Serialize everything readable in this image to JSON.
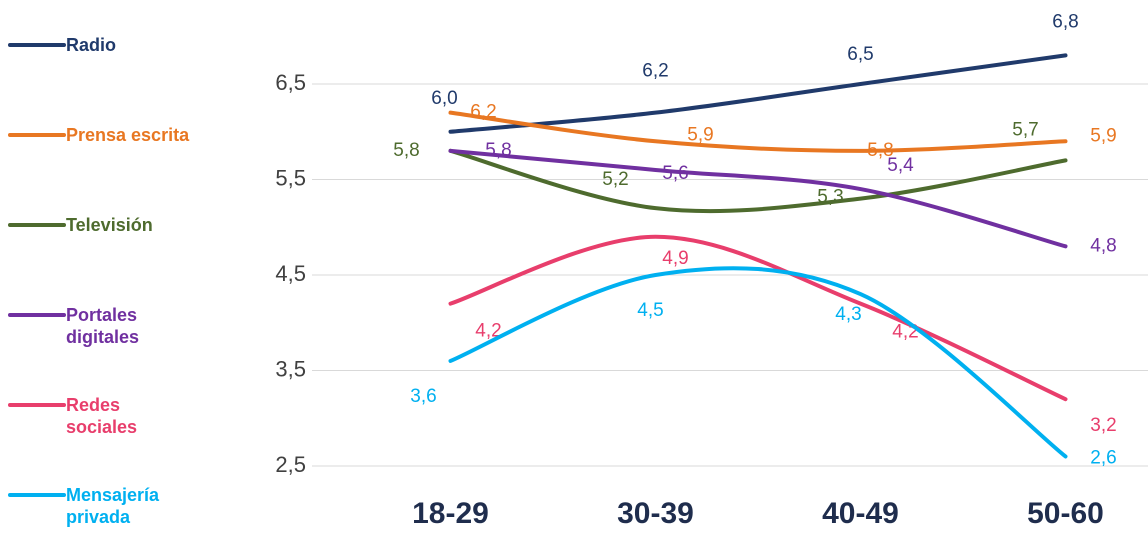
{
  "chart_data": {
    "type": "line",
    "categories": [
      "18-29",
      "30-39",
      "40-49",
      "50-60"
    ],
    "series": [
      {
        "name": "Radio",
        "color": "#203a6b",
        "values": [
          6.0,
          6.2,
          6.5,
          6.8
        ],
        "value_labels": [
          "6,0",
          "6,2",
          "6,5",
          "6,8"
        ]
      },
      {
        "name": "Prensa escrita",
        "color": "#e87722",
        "values": [
          6.2,
          5.9,
          5.8,
          5.9
        ],
        "value_labels": [
          "6,2",
          "5,9",
          "5,8",
          "5,9"
        ]
      },
      {
        "name": "Televisión",
        "color": "#4e6b2e",
        "values": [
          5.8,
          5.2,
          5.3,
          5.7
        ],
        "value_labels": [
          "5,8",
          "5,2",
          "5,3",
          "5,7"
        ]
      },
      {
        "name": "Portales digitales",
        "color": "#7030a0",
        "values": [
          5.8,
          5.6,
          5.4,
          4.8
        ],
        "value_labels": [
          "5,8",
          "5,6",
          "5,4",
          "4,8"
        ]
      },
      {
        "name": "Redes sociales",
        "color": "#e83e6c",
        "values": [
          4.2,
          4.9,
          4.2,
          3.2
        ],
        "value_labels": [
          "4,2",
          "4,9",
          "4,2",
          "3,2"
        ]
      },
      {
        "name": "Mensajería privada",
        "color": "#00b0f0",
        "values": [
          3.6,
          4.5,
          4.3,
          2.6
        ],
        "value_labels": [
          "3,6",
          "4,5",
          "4,3",
          "2,6"
        ]
      }
    ],
    "ylim": [
      2.5,
      7
    ],
    "yticks": [
      {
        "value": 2.5,
        "label": "2,5"
      },
      {
        "value": 3.5,
        "label": "3,5"
      },
      {
        "value": 4.5,
        "label": "4,5"
      },
      {
        "value": 5.5,
        "label": "5,5"
      },
      {
        "value": 6.5,
        "label": "6,5"
      }
    ],
    "grid": true,
    "smooth": true,
    "legend": "left"
  }
}
